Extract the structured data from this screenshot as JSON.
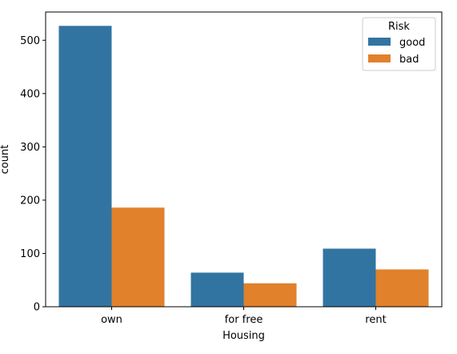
{
  "chart_data": {
    "type": "bar",
    "categories": [
      "own",
      "for free",
      "rent"
    ],
    "series": [
      {
        "name": "good",
        "color": "#3274a1",
        "values": [
          527,
          64,
          109
        ]
      },
      {
        "name": "bad",
        "color": "#e1812c",
        "values": [
          186,
          44,
          70
        ]
      }
    ],
    "xlabel": "Housing",
    "ylabel": "count",
    "ylim": [
      0,
      553
    ],
    "yticks": [
      0,
      100,
      200,
      300,
      400,
      500
    ],
    "grid": false,
    "legend": {
      "title": "Risk",
      "placement": "top-right"
    }
  }
}
